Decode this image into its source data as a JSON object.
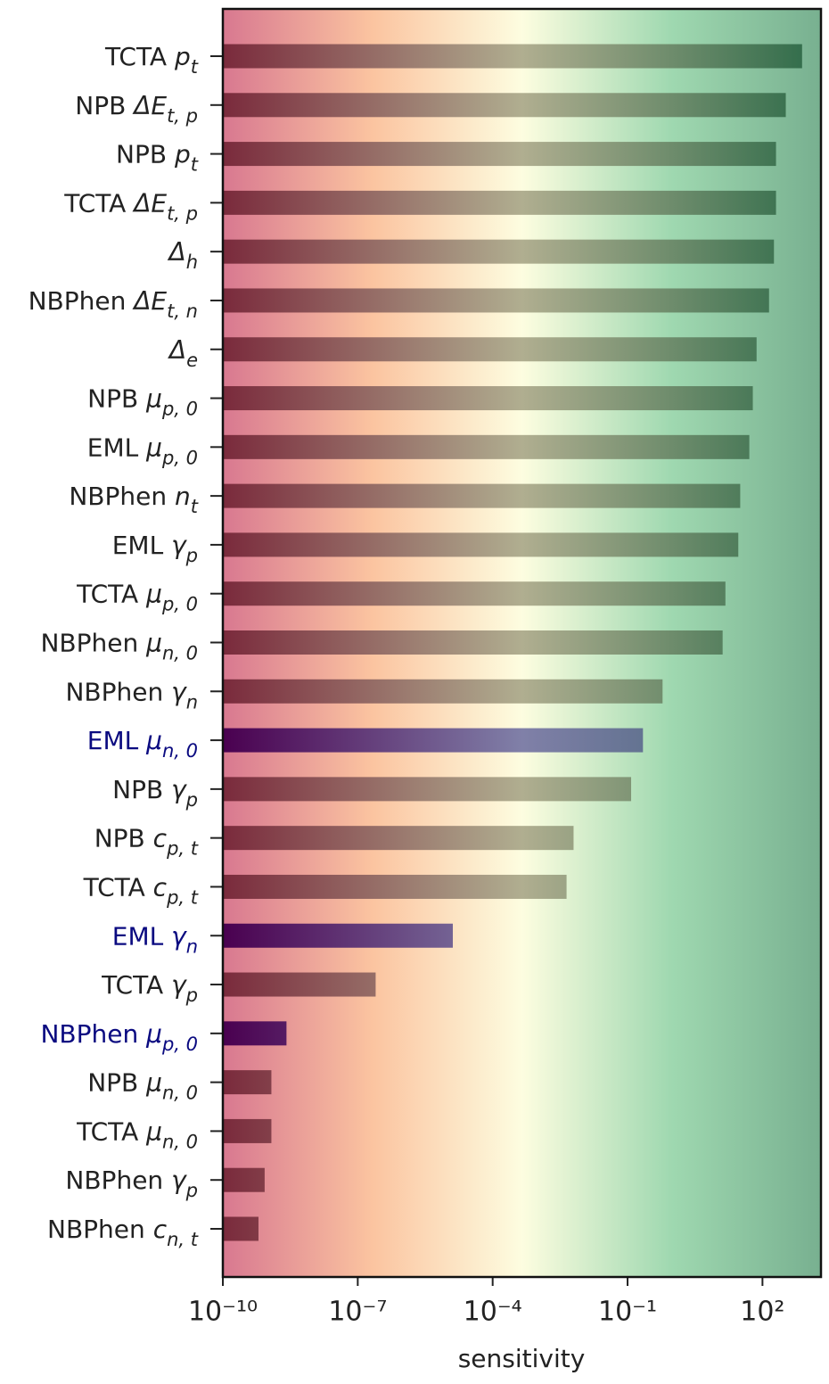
{
  "chart_data": {
    "type": "barh",
    "x_label": "sensitivity",
    "x_scale": "log",
    "xlim": [
      1e-10,
      2000
    ],
    "xticks": [
      {
        "value": 1e-10,
        "label": "10⁻¹⁰"
      },
      {
        "value": 1e-07,
        "label": "10⁻⁷"
      },
      {
        "value": 0.0001,
        "label": "10⁻⁴"
      },
      {
        "value": 0.1,
        "label": "10⁻¹"
      },
      {
        "value": 100,
        "label": "10²"
      }
    ],
    "categories": [
      {
        "name": "TCTA",
        "symbol": "p",
        "subscript": "t"
      },
      {
        "name": "NPB",
        "symbol": "ΔE",
        "subscript": "t, p"
      },
      {
        "name": "NPB",
        "symbol": "p",
        "subscript": "t"
      },
      {
        "name": "TCTA",
        "symbol": "ΔE",
        "subscript": "t, p"
      },
      {
        "symbol": "Δ",
        "subscript": "h"
      },
      {
        "name": "NBPhen",
        "symbol": "ΔE",
        "subscript": "t, n"
      },
      {
        "symbol": "Δ",
        "subscript": "e"
      },
      {
        "name": "NPB",
        "symbol": "μ",
        "subscript": "p, 0"
      },
      {
        "name": "EML",
        "symbol": "μ",
        "subscript": "p, 0"
      },
      {
        "name": "NBPhen",
        "symbol": "n",
        "subscript": "t"
      },
      {
        "name": "EML",
        "symbol": "γ",
        "subscript": "p"
      },
      {
        "name": "TCTA",
        "symbol": "μ",
        "subscript": "p, 0"
      },
      {
        "name": "NBPhen",
        "symbol": "μ",
        "subscript": "n, 0"
      },
      {
        "name": "NBPhen",
        "symbol": "γ",
        "subscript": "n"
      },
      {
        "name": "EML",
        "symbol": "μ",
        "subscript": "n, 0",
        "highlighted": true
      },
      {
        "name": "NPB",
        "symbol": "γ",
        "subscript": "p"
      },
      {
        "name": "NPB",
        "symbol": "c",
        "subscript": "p, t"
      },
      {
        "name": "TCTA",
        "symbol": "c",
        "subscript": "p, t"
      },
      {
        "name": "EML",
        "symbol": "γ",
        "subscript": "n",
        "highlighted": true
      },
      {
        "name": "TCTA",
        "symbol": "γ",
        "subscript": "p"
      },
      {
        "name": "NBPhen",
        "symbol": "μ",
        "subscript": "p, 0",
        "highlighted": true
      },
      {
        "name": "NPB",
        "symbol": "μ",
        "subscript": "n, 0"
      },
      {
        "name": "TCTA",
        "symbol": "μ",
        "subscript": "n, 0"
      },
      {
        "name": "NBPhen",
        "symbol": "γ",
        "subscript": "p"
      },
      {
        "name": "NBPhen",
        "symbol": "c",
        "subscript": "n, t"
      }
    ],
    "values": [
      760,
      330,
      200,
      200,
      180,
      140,
      74,
      61,
      51,
      32,
      29,
      15,
      13,
      0.6,
      0.22,
      0.12,
      0.0063,
      0.0044,
      1.3e-05,
      2.5e-07,
      2.6e-09,
      1.2e-09,
      1.2e-09,
      8.5e-10,
      6.2e-10
    ],
    "bar_colors": [
      "#7a2a3c",
      "#b0ae90",
      "#2c6a48"
    ],
    "highlight_bar_colors": [
      "#4a0050",
      "#8080a8",
      "#3a6070"
    ],
    "highlight_label_color": "#0a0a80",
    "background_colors": [
      "#d87890",
      "#fbc4a0",
      "#fdfde0",
      "#9fd8b0",
      "#78b090"
    ]
  }
}
